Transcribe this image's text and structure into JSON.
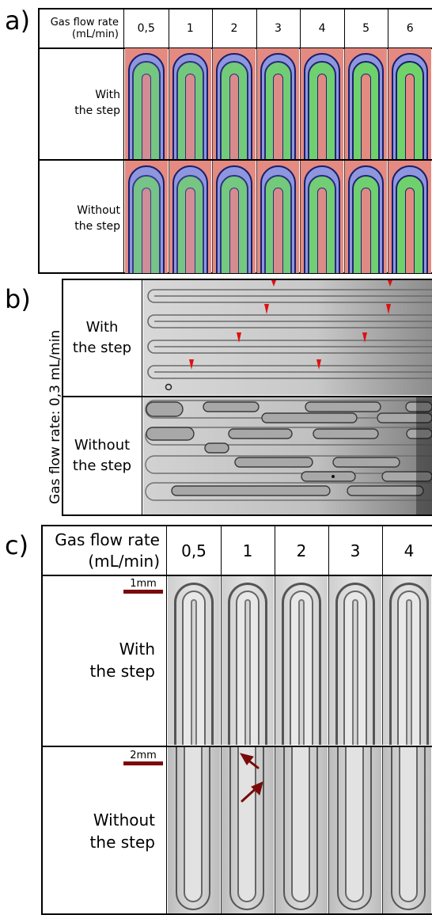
{
  "panel_a": {
    "label": "a)",
    "header_label_line1": "Gas flow rate",
    "header_label_line2": "(mL/min)",
    "flow_rates": [
      "0,5",
      "1",
      "2",
      "3",
      "4",
      "5",
      "6"
    ],
    "row1_line1": "With",
    "row1_line2": "the step",
    "row2_line1": "Without",
    "row2_line2": "the step",
    "colors": {
      "liquid": "#6fd36a",
      "gas": "#e58a80",
      "wall": "#8f96e0",
      "outline": "#1a1f6b"
    }
  },
  "panel_b": {
    "label": "b)",
    "side_label": "Gas flow rate: 0,3 mL/min",
    "row1_line1": "With",
    "row1_line2": "the step",
    "row2_line1": "Without",
    "row2_line2": "the step",
    "marker_color": "#e01010"
  },
  "panel_c": {
    "label": "c)",
    "header_label_line1": "Gas flow rate",
    "header_label_line2": "(mL/min)",
    "flow_rates": [
      "0,5",
      "1",
      "2",
      "3",
      "4"
    ],
    "row1_line1": "With",
    "row1_line2": "the step",
    "row2_line1": "Without",
    "row2_line2": "the step",
    "scale1": "1mm",
    "scale2": "2mm",
    "scale_color": "#7a0a0a"
  }
}
